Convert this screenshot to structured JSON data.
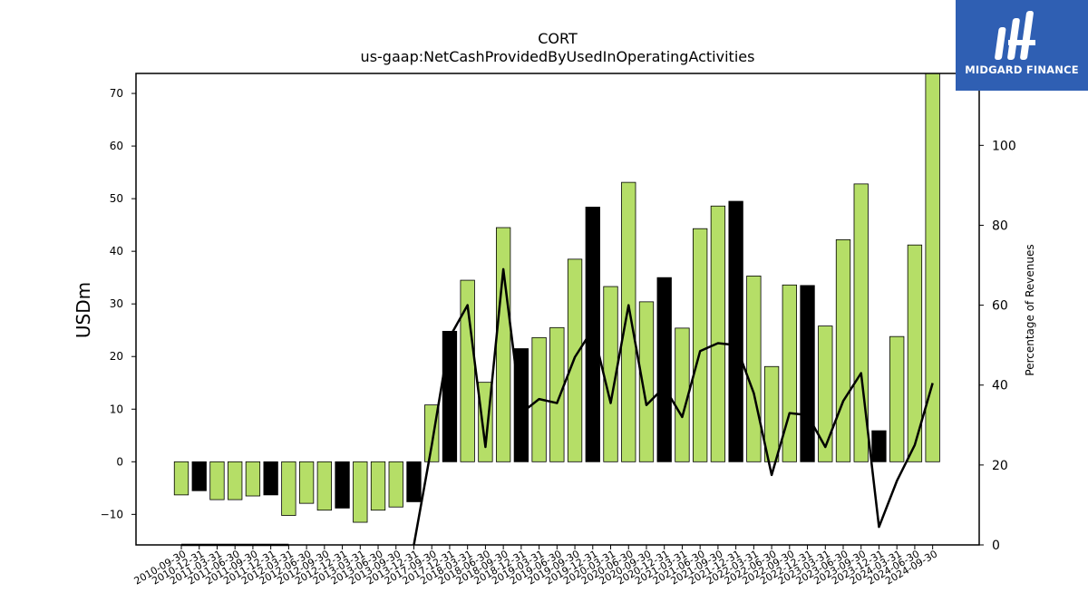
{
  "chart_data": {
    "type": "bar",
    "title": "CORT",
    "subtitle": "us-gaap:NetCashProvidedByUsedInOperatingActivities",
    "ylabel": "USDm",
    "y2label": "Percentage of Revenues",
    "ylim": [
      -15.8,
      73.8
    ],
    "y2lim": [
      0,
      118
    ],
    "yticks": [
      -10,
      0,
      10,
      20,
      30,
      40,
      50,
      60,
      70
    ],
    "y2ticks": [
      0,
      20,
      40,
      60,
      80,
      100
    ],
    "colors": {
      "q4_bar": "#000000",
      "bar": "#b5de67",
      "line": "#000000"
    },
    "categories": [
      "2010-09-30",
      "2010-12-31",
      "2011-03-31",
      "2011-06-30",
      "2011-09-30",
      "2011-12-31",
      "2012-03-31",
      "2012-06-30",
      "2012-09-30",
      "2012-12-31",
      "2013-03-31",
      "2013-06-30",
      "2013-09-30",
      "2013-12-31",
      "2017-09-30",
      "2017-12-31",
      "2018-03-31",
      "2018-06-30",
      "2018-09-30",
      "2018-12-31",
      "2019-03-31",
      "2019-06-30",
      "2019-09-30",
      "2019-12-31",
      "2020-03-31",
      "2020-06-30",
      "2020-09-30",
      "2020-12-31",
      "2021-03-31",
      "2021-06-30",
      "2021-09-30",
      "2021-12-31",
      "2022-03-31",
      "2022-06-30",
      "2022-09-30",
      "2022-12-31",
      "2023-03-31",
      "2023-06-30",
      "2023-09-30",
      "2023-12-31",
      "2024-03-31",
      "2024-06-30",
      "2024-09-30"
    ],
    "series": [
      {
        "values": [
          -6.3,
          -5.5,
          -7.2,
          -7.2,
          -6.5,
          -6.3,
          -10.2,
          -7.9,
          -9.2,
          -8.8,
          -11.5,
          -9.2,
          -8.6,
          -7.6,
          10.8,
          24.8,
          34.5,
          15.1,
          44.5,
          21.5,
          23.6,
          25.5,
          38.5,
          48.4,
          33.3,
          53.1,
          30.4,
          35.0,
          25.4,
          44.3,
          48.6,
          49.5,
          35.3,
          18.1,
          33.6,
          33.5,
          25.8,
          42.2,
          52.8,
          5.9,
          23.8,
          41.2,
          73.8
        ]
      },
      {
        "type": "line",
        "values": [
          0,
          0,
          0,
          0,
          0,
          0,
          0,
          null,
          null,
          null,
          null,
          null,
          null,
          0,
          25,
          52,
          60,
          24.5,
          69,
          33,
          36.5,
          35.5,
          47,
          54,
          35.5,
          60,
          35,
          39.5,
          32,
          48.5,
          50.5,
          50,
          38,
          17.5,
          33,
          32.5,
          24.5,
          36,
          43,
          4.5,
          16,
          25,
          40.5
        ]
      }
    ]
  },
  "logo": {
    "text": "MIDGARD FINANCE"
  }
}
